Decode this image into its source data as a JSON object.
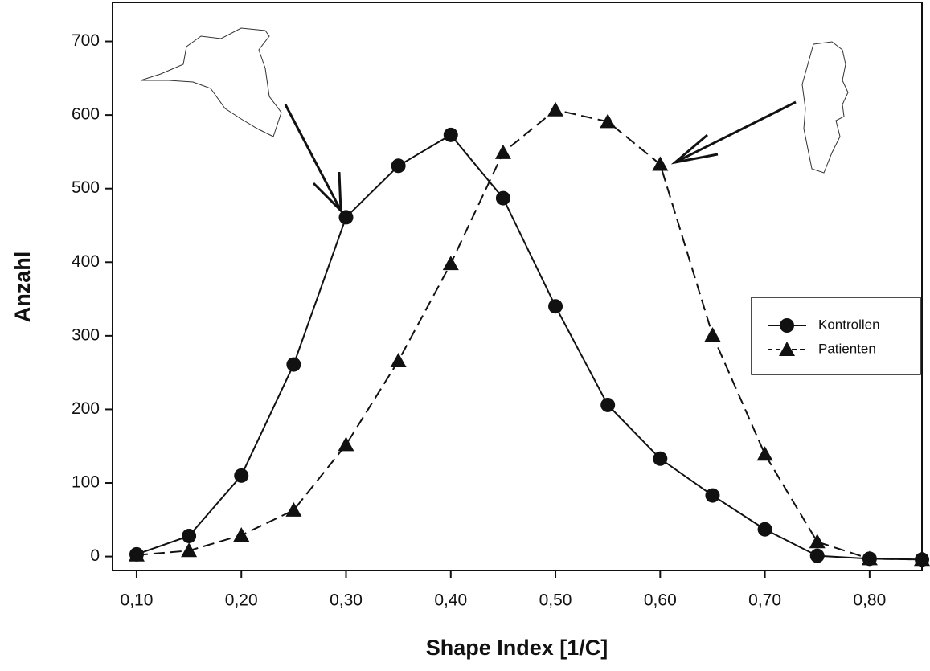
{
  "chart_data": {
    "type": "line",
    "x": [
      0.1,
      0.15,
      0.2,
      0.25,
      0.3,
      0.35,
      0.4,
      0.45,
      0.5,
      0.55,
      0.6,
      0.65,
      0.7,
      0.75,
      0.8,
      0.85
    ],
    "series": [
      {
        "name": "Kontrollen",
        "color": "#111111",
        "marker": "circle",
        "dashed": false,
        "values": [
          3,
          28,
          110,
          261,
          461,
          531,
          573,
          487,
          340,
          206,
          133,
          83,
          37,
          1,
          -3,
          -4
        ]
      },
      {
        "name": "Patienten",
        "color": "#111111",
        "marker": "triangle",
        "dashed": true,
        "values": [
          2,
          8,
          29,
          63,
          152,
          266,
          398,
          549,
          607,
          591,
          533,
          301,
          139,
          20,
          -3,
          -4
        ]
      }
    ],
    "xlabel": "Shape Index [1/C]",
    "ylabel": "Anzahl",
    "xlim": [
      0.077,
      0.85
    ],
    "ylim": [
      -19,
      753
    ],
    "xticks": [
      {
        "value": 0.1,
        "label": "0,10"
      },
      {
        "value": 0.2,
        "label": "0,20"
      },
      {
        "value": 0.3,
        "label": "0,30"
      },
      {
        "value": 0.4,
        "label": "0,40"
      },
      {
        "value": 0.5,
        "label": "0,50"
      },
      {
        "value": 0.6,
        "label": "0,60"
      },
      {
        "value": 0.7,
        "label": "0,70"
      },
      {
        "value": 0.8,
        "label": "0,80"
      }
    ],
    "yticks": [
      0,
      100,
      200,
      300,
      400,
      500,
      600,
      700
    ],
    "legend": "right"
  }
}
